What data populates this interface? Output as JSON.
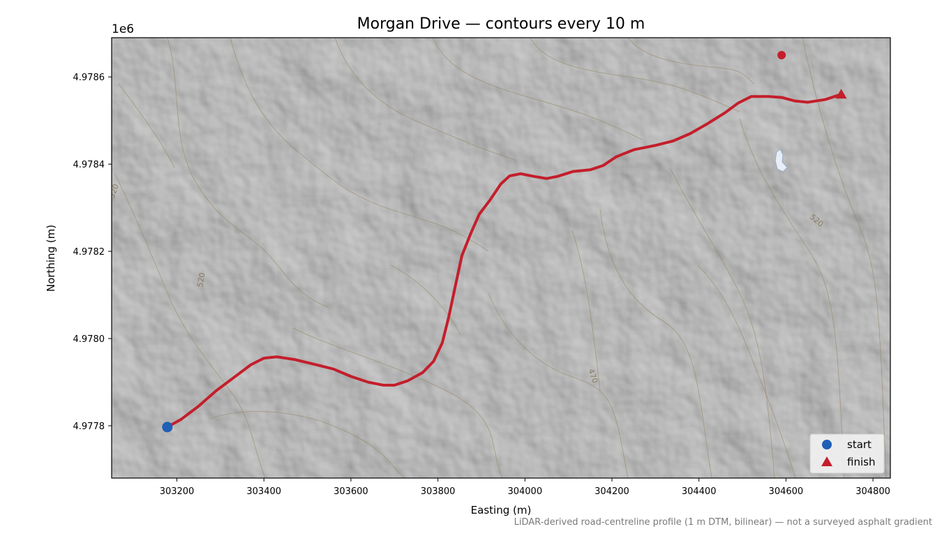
{
  "chart_data": {
    "type": "line",
    "title": "Morgan Drive — contours every 10 m",
    "xlabel": "Easting (m)",
    "ylabel": "Northing (m)",
    "y_offset_label": "1e6",
    "xlim": [
      303050,
      304840
    ],
    "ylim": [
      4977680,
      4978690
    ],
    "x_ticks": [
      303200,
      303400,
      303600,
      303800,
      304000,
      304200,
      304400,
      304600,
      304800
    ],
    "y_ticks": [
      4977800,
      4978000,
      4978200,
      4978400,
      4978600
    ],
    "x_tick_labels": [
      "303200",
      "303400",
      "303600",
      "303800",
      "304000",
      "304200",
      "304400",
      "304600",
      "304800"
    ],
    "y_tick_labels": [
      "4.9778",
      "4.9780",
      "4.9782",
      "4.9784",
      "4.9786"
    ],
    "grid": false,
    "legend_position": "bottom-right",
    "note": "LiDAR-derived road-centreline profile (1 m DTM, bilinear) — not a surveyed asphalt gradient",
    "series": [
      {
        "name": "route",
        "color": "#c41e2b",
        "points": [
          [
            303178,
            4977797
          ],
          [
            303210,
            4977815
          ],
          [
            303250,
            4977845
          ],
          [
            303290,
            4977880
          ],
          [
            303330,
            4977910
          ],
          [
            303370,
            4977940
          ],
          [
            303400,
            4977955
          ],
          [
            303430,
            4977958
          ],
          [
            303470,
            4977952
          ],
          [
            303520,
            4977940
          ],
          [
            303560,
            4977930
          ],
          [
            303600,
            4977913
          ],
          [
            303640,
            4977900
          ],
          [
            303675,
            4977893
          ],
          [
            303700,
            4977893
          ],
          [
            303730,
            4977903
          ],
          [
            303765,
            4977922
          ],
          [
            303790,
            4977948
          ],
          [
            303810,
            4977990
          ],
          [
            303825,
            4978050
          ],
          [
            303840,
            4978120
          ],
          [
            303855,
            4978190
          ],
          [
            303875,
            4978240
          ],
          [
            303895,
            4978285
          ],
          [
            303920,
            4978318
          ],
          [
            303945,
            4978355
          ],
          [
            303965,
            4978373
          ],
          [
            303990,
            4978378
          ],
          [
            304020,
            4978372
          ],
          [
            304050,
            4978367
          ],
          [
            304075,
            4978372
          ],
          [
            304110,
            4978383
          ],
          [
            304150,
            4978387
          ],
          [
            304180,
            4978397
          ],
          [
            304210,
            4978417
          ],
          [
            304250,
            4978433
          ],
          [
            304300,
            4978443
          ],
          [
            304340,
            4978453
          ],
          [
            304380,
            4978470
          ],
          [
            304420,
            4978493
          ],
          [
            304460,
            4978518
          ],
          [
            304490,
            4978540
          ],
          [
            304520,
            4978555
          ],
          [
            304560,
            4978555
          ],
          [
            304590,
            4978553
          ],
          [
            304620,
            4978545
          ],
          [
            304650,
            4978542
          ],
          [
            304690,
            4978548
          ],
          [
            304727,
            4978560
          ]
        ]
      }
    ],
    "markers": [
      {
        "name": "start",
        "type": "circle",
        "color": "#1f5fb4",
        "x": 303178,
        "y": 4977797
      },
      {
        "name": "finish",
        "type": "triangle",
        "color": "#c41e2b",
        "x": 304727,
        "y": 4978560
      },
      {
        "name": "point",
        "type": "circle",
        "color": "#c41e2b",
        "x": 304590,
        "y": 4978650
      }
    ],
    "contour_labels": [
      "520",
      "520",
      "470",
      "520"
    ],
    "legend": [
      {
        "label": "start",
        "marker": "circle",
        "color": "#1f5fb4"
      },
      {
        "label": "finish",
        "marker": "triangle",
        "color": "#c41e2b"
      }
    ]
  }
}
